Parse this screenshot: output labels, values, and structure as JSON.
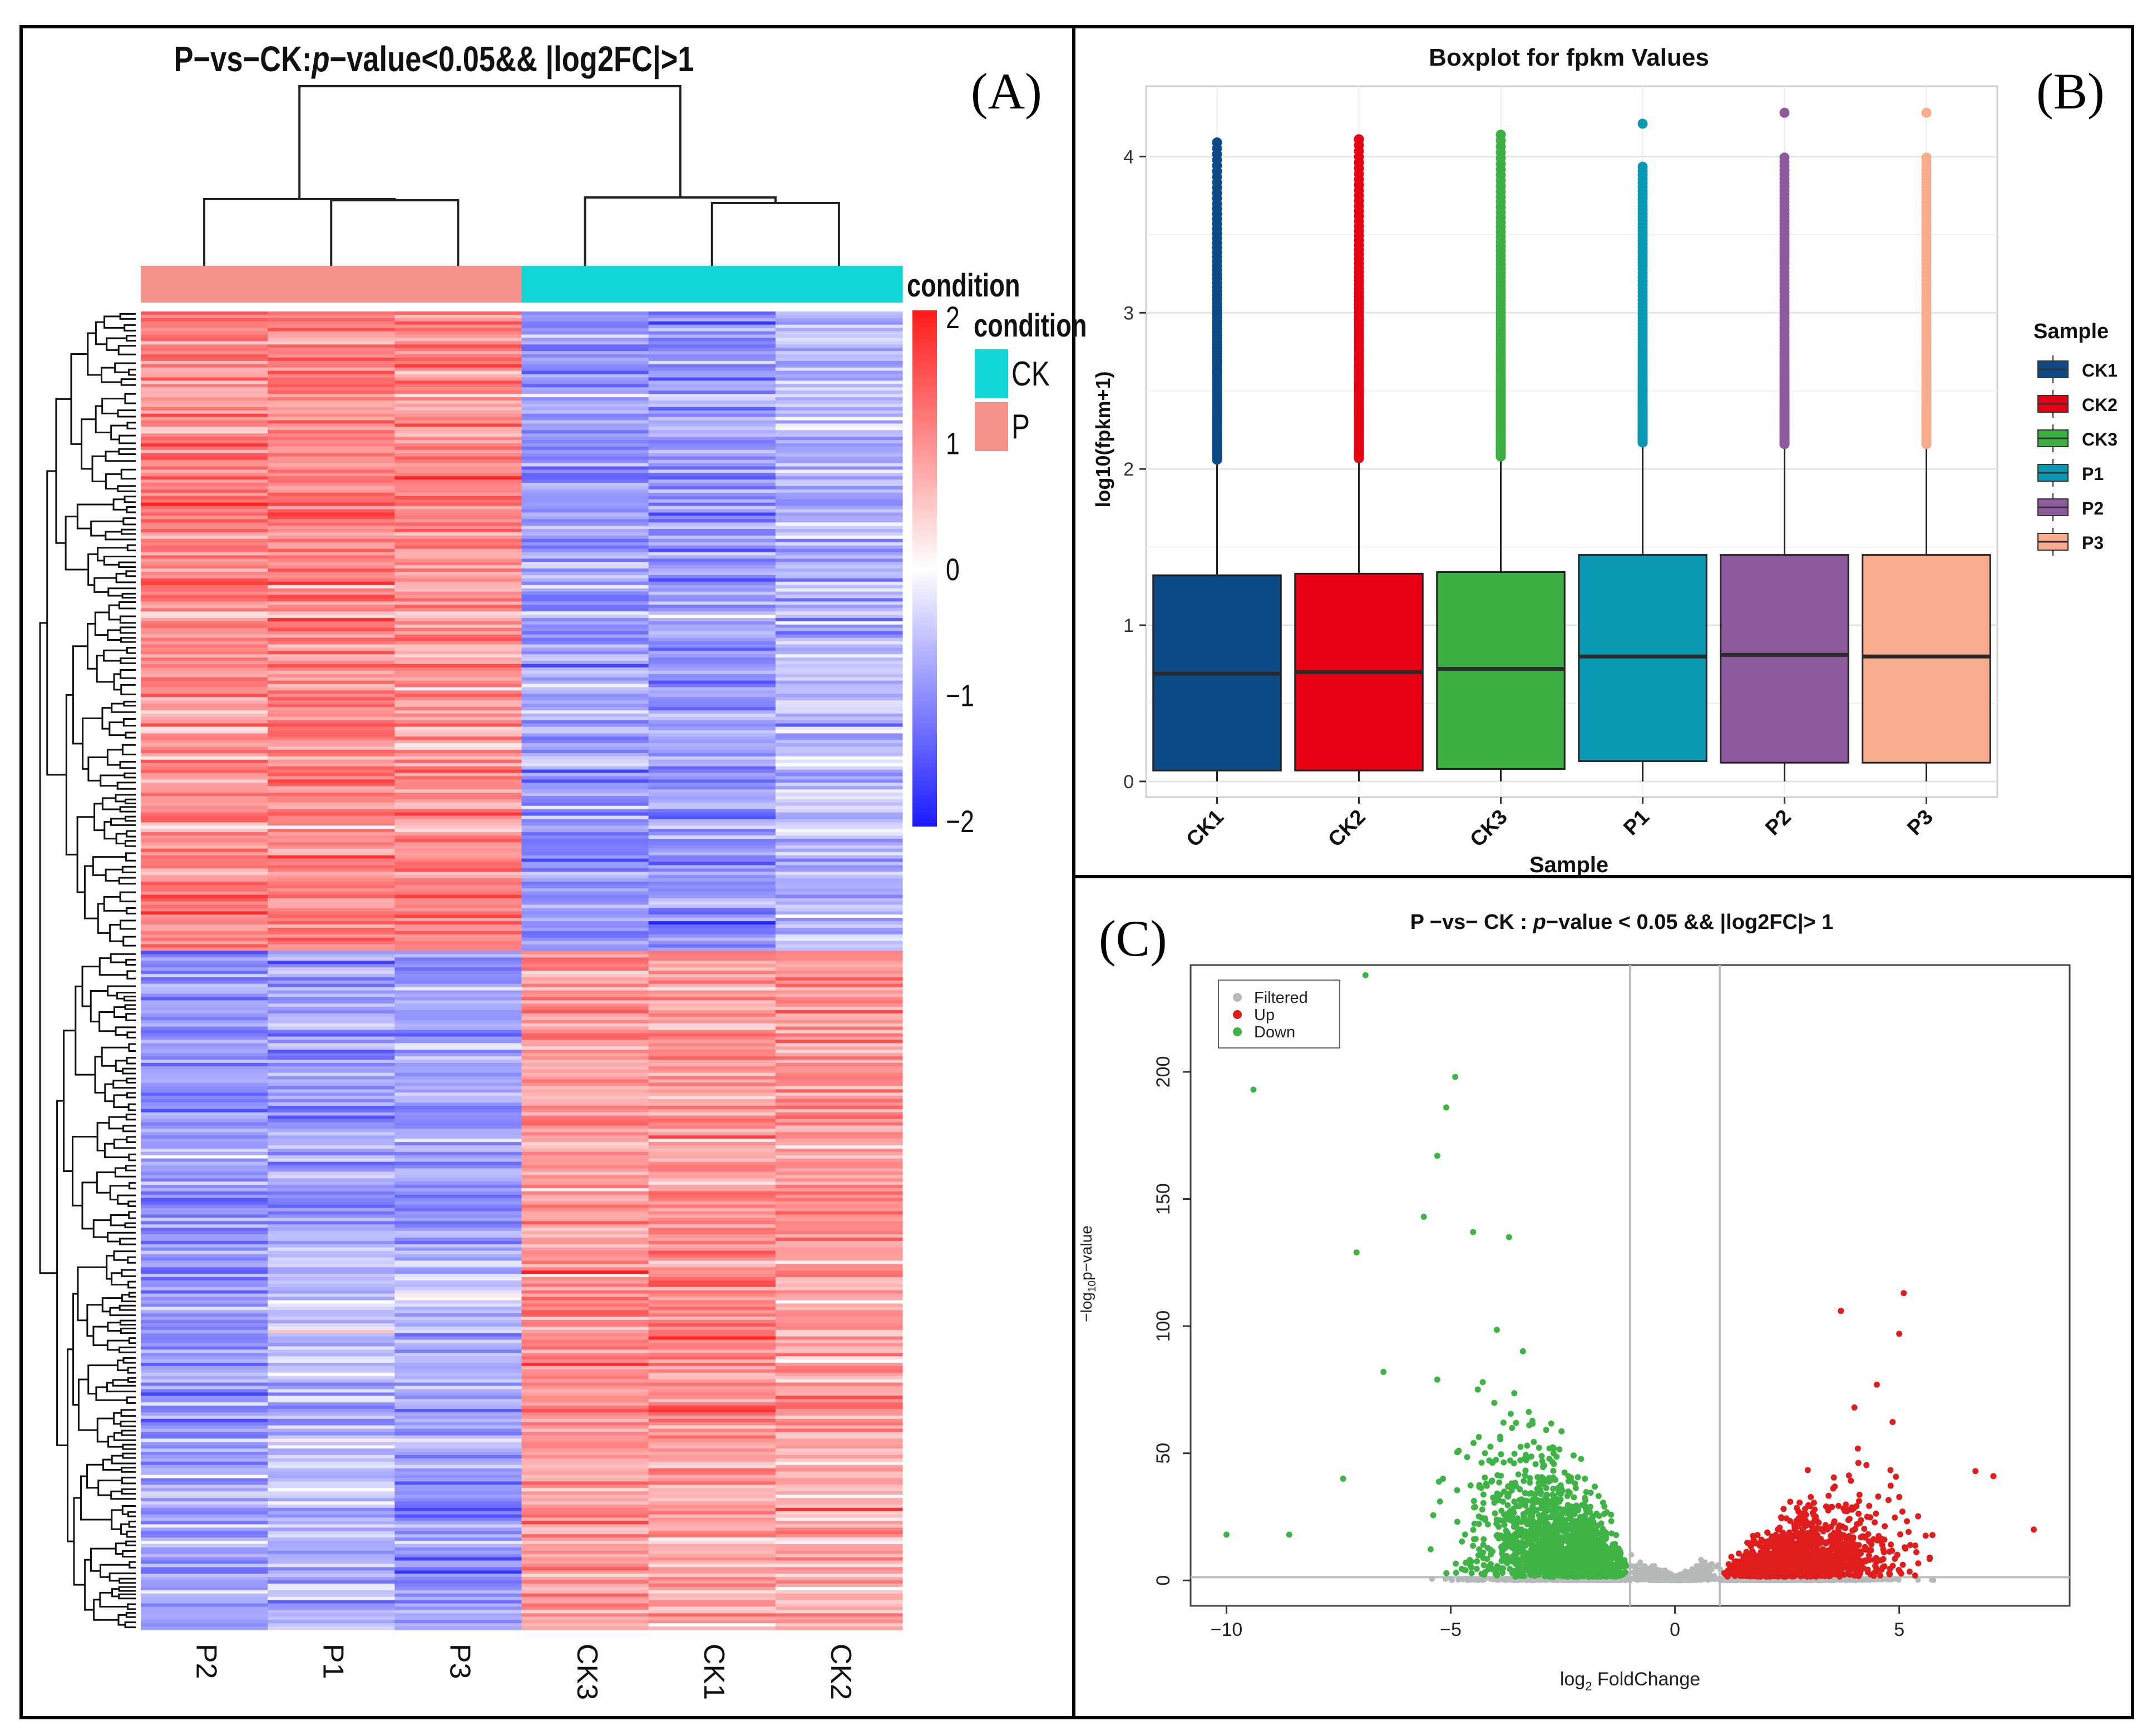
{
  "figure_labels": {
    "a": "(A)",
    "b": "(B)",
    "c": "(C)"
  },
  "chart_data": [
    {
      "id": "A",
      "type": "heatmap",
      "title_prefix": "P−vs−CK:",
      "title_italic": "p",
      "title_suffix": "−value<0.05&& |log2FC|>1",
      "columns": [
        "P2",
        "P1",
        "P3",
        "CK3",
        "CK1",
        "CK2"
      ],
      "condition_groups": [
        "P",
        "P",
        "P",
        "CK",
        "CK",
        "CK"
      ],
      "condition_colors": {
        "P": "#f4928a",
        "CK": "#12d6d6"
      },
      "annotation_title": "condition",
      "legend_title": "condition",
      "legend_items": [
        {
          "label": "CK",
          "color": "#12d6d6"
        },
        {
          "label": "P",
          "color": "#f4928a"
        }
      ],
      "color_scale": {
        "min": -2,
        "max": 2,
        "low": "#1a1aff",
        "mid": "#ffffff",
        "high": "#ff1a1a",
        "ticks": [
          "2",
          "1",
          "0",
          "−1",
          "−2"
        ]
      },
      "row_clusters": [
        {
          "fraction": 0.485,
          "means": [
            1.0,
            1.1,
            1.0,
            -0.9,
            -0.9,
            -0.6
          ]
        },
        {
          "fraction": 0.225,
          "means": [
            -0.9,
            -0.8,
            -0.8,
            0.9,
            0.9,
            0.9
          ]
        },
        {
          "fraction": 0.155,
          "means": [
            -0.9,
            -0.5,
            -0.6,
            1.0,
            1.0,
            0.8
          ]
        },
        {
          "fraction": 0.135,
          "means": [
            -0.8,
            -0.6,
            -0.9,
            0.9,
            0.8,
            0.7
          ]
        }
      ]
    },
    {
      "id": "B",
      "type": "boxplot",
      "title": "Boxplot for fpkm Values",
      "xlabel": "Sample",
      "ylabel": "log10(fpkm+1)",
      "ylim": [
        -0.1,
        4.45
      ],
      "yticks": [
        0,
        1,
        2,
        3,
        4
      ],
      "legend_title": "Sample",
      "categories": [
        "CK1",
        "CK2",
        "CK3",
        "P1",
        "P2",
        "P3"
      ],
      "colors": [
        "#0c4a86",
        "#e60012",
        "#3cb043",
        "#0a98b2",
        "#8e5a9e",
        "#f7ad8d"
      ],
      "boxes": [
        {
          "name": "CK1",
          "min": 0.0,
          "q1": 0.07,
          "median": 0.69,
          "q3": 1.32,
          "whisker_high": 2.06,
          "outlier_max": 4.09
        },
        {
          "name": "CK2",
          "min": 0.0,
          "q1": 0.07,
          "median": 0.7,
          "q3": 1.33,
          "whisker_high": 2.07,
          "outlier_max": 4.11
        },
        {
          "name": "CK3",
          "min": 0.0,
          "q1": 0.08,
          "median": 0.72,
          "q3": 1.34,
          "whisker_high": 2.08,
          "outlier_max": 4.14
        },
        {
          "name": "P1",
          "min": 0.0,
          "q1": 0.13,
          "median": 0.8,
          "q3": 1.45,
          "whisker_high": 2.17,
          "outlier_max": 4.21
        },
        {
          "name": "P2",
          "min": 0.0,
          "q1": 0.12,
          "median": 0.81,
          "q3": 1.45,
          "whisker_high": 2.16,
          "outlier_max": 4.28
        },
        {
          "name": "P3",
          "min": 0.0,
          "q1": 0.12,
          "median": 0.8,
          "q3": 1.45,
          "whisker_high": 2.16,
          "outlier_max": 4.28
        }
      ]
    },
    {
      "id": "C",
      "type": "scatter",
      "title_prefix": "P −vs− CK : ",
      "title_italic": "p",
      "title_suffix": "−value < 0.05 && |log2FC|> 1",
      "xlabel_pre": "log",
      "xlabel_sub": "2",
      "xlabel_post": " FoldChange",
      "ylabel_pre": "−log",
      "ylabel_sub": "10",
      "ylabel_post": "p−value",
      "xlim": [
        -10.8,
        8.8
      ],
      "ylim": [
        -10,
        242
      ],
      "xticks": [
        -10,
        -5,
        0,
        5
      ],
      "yticks": [
        0,
        50,
        100,
        150,
        200
      ],
      "xtick_labels": [
        "−10",
        "−5",
        "0",
        "5"
      ],
      "thresholds": {
        "x": [
          -1,
          1
        ],
        "y": 1.3
      },
      "legend": [
        {
          "label": "Filtered",
          "color": "#b5b9ba"
        },
        {
          "label": "Up",
          "color": "#e01d1d"
        },
        {
          "label": "Down",
          "color": "#3fb346"
        }
      ],
      "notable_down": [
        [
          -6.9,
          238
        ],
        [
          -4.9,
          198
        ],
        [
          -9.4,
          193
        ],
        [
          -5.1,
          186
        ],
        [
          -5.3,
          167
        ],
        [
          -5.6,
          143
        ],
        [
          -4.5,
          137
        ],
        [
          -3.7,
          135
        ],
        [
          -7.1,
          129
        ],
        [
          -10.0,
          18
        ],
        [
          -8.6,
          18
        ],
        [
          -7.4,
          40
        ],
        [
          -6.5,
          82
        ]
      ],
      "notable_up": [
        [
          5.1,
          113
        ],
        [
          3.7,
          106
        ],
        [
          5.0,
          97
        ],
        [
          4.5,
          77
        ],
        [
          4.0,
          68
        ],
        [
          6.7,
          43
        ],
        [
          7.1,
          41
        ],
        [
          8.0,
          20
        ]
      ]
    }
  ]
}
